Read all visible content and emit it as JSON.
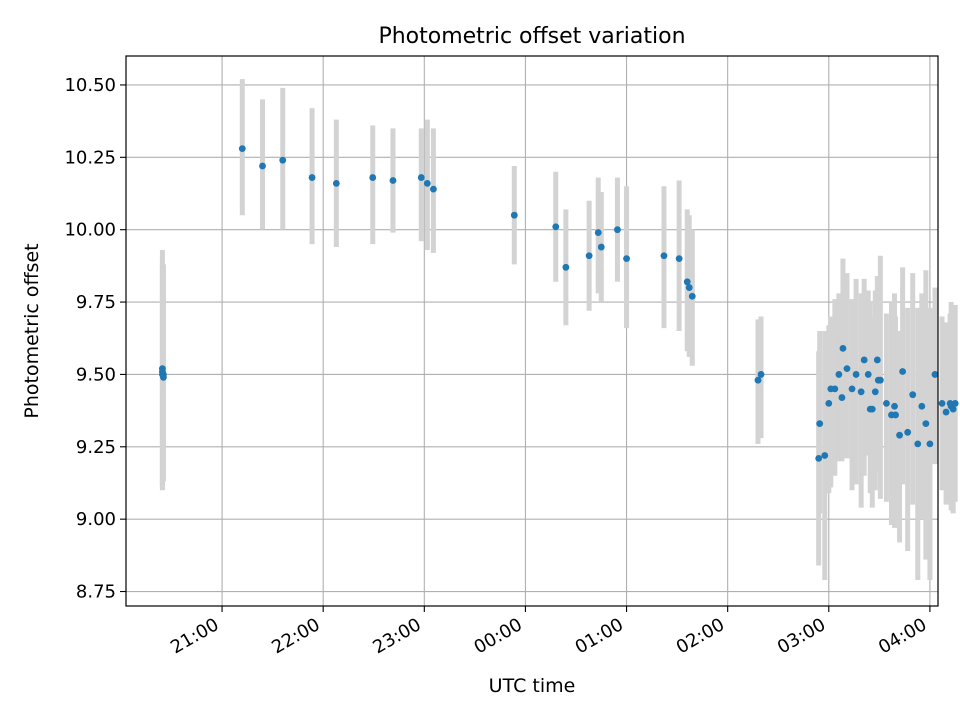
{
  "chart_data": {
    "type": "scatter",
    "title": "Photometric offset variation",
    "xlabel": "UTC time",
    "ylabel": "Photometric offset",
    "x_tick_labels": [
      "21:00",
      "22:00",
      "23:00",
      "00:00",
      "01:00",
      "02:00",
      "03:00",
      "04:00"
    ],
    "y_tick_labels": [
      "8.75",
      "9.00",
      "9.25",
      "9.50",
      "9.75",
      "10.00",
      "10.25",
      "10.50"
    ],
    "y_ticks": [
      8.75,
      9.0,
      9.25,
      9.5,
      9.75,
      10.0,
      10.25,
      10.5
    ],
    "x_ticks_hours_since_21utc": [
      0,
      1,
      2,
      3,
      4,
      5,
      6,
      7
    ],
    "xlim_hours_since_21utc": [
      -0.95,
      7.08
    ],
    "ylim": [
      8.7,
      10.6
    ],
    "grid": true,
    "colors": {
      "points": "#1f77b4",
      "error_bars": "#d3d3d3",
      "grid": "#b0b0b0"
    },
    "series": [
      {
        "x_hours_since_21utc": [
          -0.59,
          -0.58,
          -0.59,
          -0.58,
          0.2,
          -0.59,
          0.4,
          0.6,
          0.89,
          1.13,
          1.49,
          1.69,
          1.97,
          2.03,
          2.09,
          2.89,
          3.3,
          3.4,
          3.63,
          3.72,
          3.75,
          3.91,
          4.0,
          4.37,
          4.52,
          4.62,
          4.6,
          4.65,
          5.3,
          5.33,
          5.91,
          5.9,
          5.96,
          6.0,
          6.02,
          6.06,
          6.1,
          6.13,
          6.14,
          6.18,
          6.23,
          6.27,
          6.32,
          6.35,
          6.39,
          6.41,
          6.43,
          6.46,
          6.48,
          6.49,
          6.51,
          6.57,
          6.62,
          6.65,
          6.66,
          6.7,
          6.73,
          6.78,
          6.83,
          6.88,
          6.92,
          6.96,
          7.0,
          7.05,
          7.12,
          7.16,
          7.2,
          7.21,
          7.23,
          7.25
        ],
        "y": [
          9.52,
          9.49,
          9.51,
          9.5,
          10.28,
          9.5,
          10.22,
          10.24,
          10.18,
          10.16,
          10.18,
          10.17,
          10.18,
          10.16,
          10.14,
          10.05,
          10.01,
          9.87,
          9.91,
          9.99,
          9.94,
          10.0,
          9.9,
          9.91,
          9.9,
          9.8,
          9.82,
          9.77,
          9.48,
          9.5,
          9.33,
          9.21,
          9.22,
          9.4,
          9.45,
          9.45,
          9.5,
          9.42,
          9.59,
          9.52,
          9.45,
          9.5,
          9.44,
          9.55,
          9.5,
          9.38,
          9.38,
          9.44,
          9.55,
          9.48,
          9.48,
          9.4,
          9.36,
          9.39,
          9.36,
          9.29,
          9.51,
          9.3,
          9.43,
          9.26,
          9.39,
          9.33,
          9.26,
          9.5,
          9.4,
          9.37,
          9.4,
          9.39,
          9.38,
          9.4
        ],
        "yerr_low": [
          9.1,
          9.13,
          9.11,
          9.14,
          10.05,
          9.12,
          10.0,
          10.0,
          9.95,
          9.94,
          9.95,
          9.99,
          9.96,
          9.93,
          9.92,
          9.88,
          9.82,
          9.67,
          9.72,
          9.78,
          9.75,
          9.82,
          9.66,
          9.66,
          9.65,
          9.56,
          9.58,
          9.53,
          9.26,
          9.28,
          9.02,
          8.84,
          8.79,
          9.09,
          9.11,
          9.15,
          9.2,
          9.2,
          9.23,
          9.21,
          9.1,
          9.12,
          9.04,
          9.15,
          9.22,
          9.09,
          9.04,
          9.1,
          9.25,
          9.17,
          9.07,
          9.06,
          8.98,
          8.97,
          9.01,
          8.92,
          9.12,
          8.89,
          9.05,
          8.79,
          9.0,
          8.86,
          8.79,
          9.19,
          9.1,
          9.05,
          9.06,
          9.03,
          9.02,
          9.06
        ],
        "yerr_high": [
          9.93,
          9.88,
          9.87,
          9.86,
          10.52,
          9.9,
          10.45,
          10.49,
          10.42,
          10.38,
          10.36,
          10.35,
          10.35,
          10.38,
          10.35,
          10.22,
          10.2,
          10.07,
          10.1,
          10.18,
          10.13,
          10.18,
          10.15,
          10.15,
          10.17,
          10.05,
          10.07,
          10.0,
          9.69,
          9.7,
          9.65,
          9.58,
          9.65,
          9.67,
          9.7,
          9.76,
          9.78,
          9.64,
          9.9,
          9.85,
          9.76,
          9.83,
          9.78,
          9.83,
          9.79,
          9.75,
          9.7,
          9.79,
          9.84,
          9.78,
          9.91,
          9.71,
          9.75,
          9.78,
          9.7,
          9.65,
          9.87,
          9.73,
          9.85,
          9.73,
          9.78,
          9.86,
          9.73,
          9.8,
          9.7,
          9.68,
          9.71,
          9.75,
          9.7,
          9.74
        ]
      }
    ]
  }
}
